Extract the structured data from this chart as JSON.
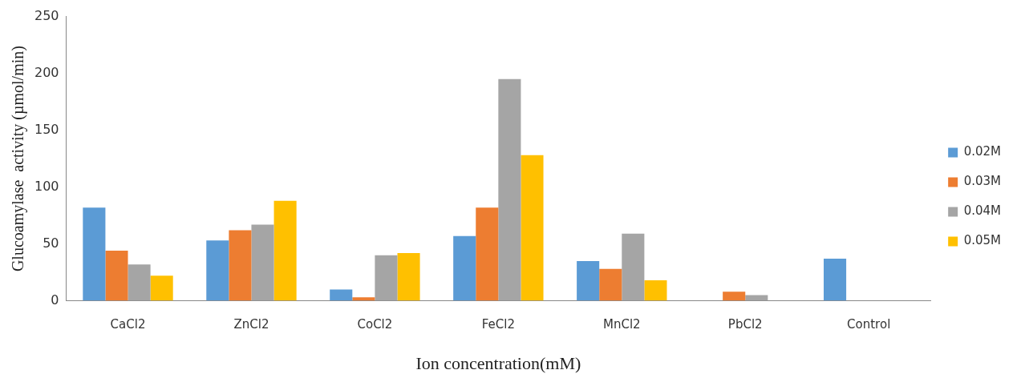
{
  "chart_data": {
    "type": "bar",
    "xlabel": "Ion concentration(mM)",
    "ylabel": "Glucoamylase  activity (µmol/min)",
    "categories": [
      "CaCl2",
      "ZnCl2",
      "CoCl2",
      "FeCl2",
      "MnCl2",
      "PbCl2",
      "Control"
    ],
    "series": [
      {
        "name": "0.02M",
        "color": "#5b9bd5",
        "values": [
          82,
          53,
          10,
          57,
          35,
          0,
          37
        ]
      },
      {
        "name": "0.03M",
        "color": "#ed7d31",
        "values": [
          44,
          62,
          3,
          82,
          28,
          8,
          0
        ]
      },
      {
        "name": "0.04M",
        "color": "#a5a5a5",
        "values": [
          32,
          67,
          40,
          195,
          59,
          5,
          0
        ]
      },
      {
        "name": "0.05M",
        "color": "#ffc000",
        "values": [
          22,
          88,
          42,
          128,
          18,
          0,
          0
        ]
      }
    ],
    "ylim": [
      0,
      250
    ],
    "yticks": [
      0,
      50,
      100,
      150,
      200,
      250
    ],
    "grid": false,
    "legend": "right"
  }
}
